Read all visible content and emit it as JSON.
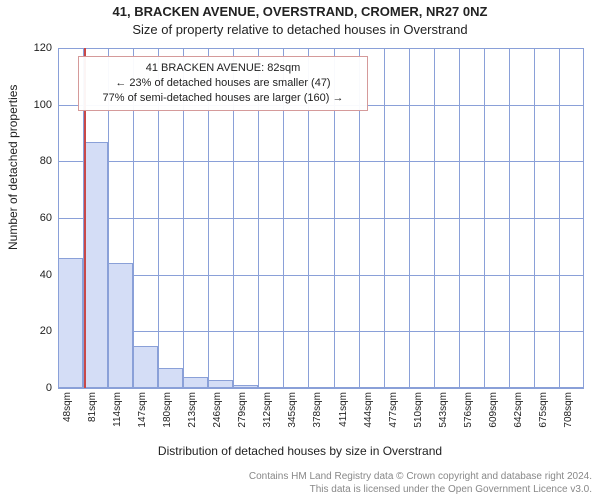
{
  "title": "41, BRACKEN AVENUE, OVERSTRAND, CROMER, NR27 0NZ",
  "subtitle": "Size of property relative to detached houses in Overstrand",
  "ylabel": "Number of detached properties",
  "xlabel": "Distribution of detached houses by size in Overstrand",
  "credits": {
    "line1": "Contains HM Land Registry data © Crown copyright and database right 2024.",
    "line2": "This data is licensed under the Open Government Licence v3.0."
  },
  "callout": {
    "line1": "41 BRACKEN AVENUE: 82sqm",
    "line2": "← 23% of detached houses are smaller (47)",
    "line3": "77% of semi-detached houses are larger (160) →"
  },
  "chart": {
    "type": "histogram",
    "ylim": [
      0,
      120
    ],
    "ytick_step": 20,
    "bar_fill": "#d4ddf6",
    "bar_border": "#8aa0d8",
    "grid_color": "#8aa0d8",
    "background_color": "#ffffff",
    "marker_color": "#c84848",
    "marker_value": 82,
    "xmin": 48,
    "xstep": 33,
    "nbars": 21,
    "x_tick_labels": [
      "48sqm",
      "81sqm",
      "114sqm",
      "147sqm",
      "180sqm",
      "213sqm",
      "246sqm",
      "279sqm",
      "312sqm",
      "345sqm",
      "378sqm",
      "411sqm",
      "444sqm",
      "477sqm",
      "510sqm",
      "543sqm",
      "576sqm",
      "609sqm",
      "642sqm",
      "675sqm",
      "708sqm"
    ],
    "values": [
      46,
      87,
      44,
      15,
      7,
      4,
      3,
      1,
      0,
      0,
      0,
      0,
      0,
      0,
      0,
      0,
      0,
      0,
      0,
      0,
      0
    ],
    "title_fontsize": 13,
    "label_fontsize": 12,
    "tick_fontsize": 11,
    "callout_border": "#d59a9a"
  }
}
